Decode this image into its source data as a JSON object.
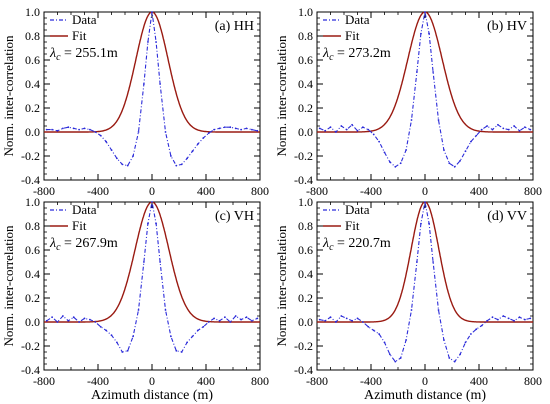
{
  "shared": {
    "ylabel": "Norm. inter-correlation",
    "xlabel": "Azimuth distance (m)",
    "legend_data": "Data",
    "legend_fit": "Fit",
    "data_color": "#2b2bd9",
    "fit_color": "#9a1b12"
  },
  "chart_data": [
    {
      "type": "line",
      "title": "(a) HH",
      "annotation": "= 255.1m",
      "lambda_c": 255.1,
      "xlim": [
        -800,
        800
      ],
      "ylim": [
        -0.4,
        1.0
      ],
      "xticks": [
        "-800",
        "-400",
        "0",
        "400",
        "800"
      ],
      "yticks": [
        "-0.4",
        "-0.2",
        "0.0",
        "0.2",
        "0.4",
        "0.6",
        "0.8",
        "1.0"
      ],
      "legend": "top-left",
      "series": [
        {
          "name": "Data",
          "style": "dash-dot",
          "x": [
            -780,
            -740,
            -700,
            -660,
            -620,
            -580,
            -540,
            -500,
            -460,
            -420,
            -380,
            -340,
            -300,
            -260,
            -220,
            -180,
            -140,
            -100,
            -60,
            -30,
            0,
            30,
            60,
            100,
            140,
            180,
            220,
            260,
            300,
            340,
            380,
            420,
            460,
            500,
            540,
            580,
            620,
            660,
            700,
            740,
            780
          ],
          "y": [
            0.02,
            0.02,
            0.01,
            0.03,
            0.04,
            0.03,
            0.02,
            0.03,
            0.02,
            0.0,
            -0.03,
            -0.08,
            -0.15,
            -0.22,
            -0.27,
            -0.28,
            -0.2,
            0.0,
            0.4,
            0.75,
            1.0,
            0.75,
            0.4,
            0.0,
            -0.2,
            -0.28,
            -0.27,
            -0.22,
            -0.16,
            -0.1,
            -0.05,
            -0.01,
            0.02,
            0.03,
            0.04,
            0.04,
            0.03,
            0.02,
            0.03,
            0.02,
            0.01
          ]
        },
        {
          "name": "Fit",
          "style": "solid",
          "model": "gaussian",
          "lambda_c": 255.1
        }
      ]
    },
    {
      "type": "line",
      "title": "(b) HV",
      "annotation": "= 273.2m",
      "lambda_c": 273.2,
      "xlim": [
        -800,
        800
      ],
      "ylim": [
        -0.4,
        1.0
      ],
      "xticks": [
        "-800",
        "-400",
        "0",
        "400",
        "800"
      ],
      "yticks": [
        "-0.4",
        "-0.2",
        "0.0",
        "0.2",
        "0.4",
        "0.6",
        "0.8",
        "1.0"
      ],
      "legend": "top-left",
      "series": [
        {
          "name": "Data",
          "style": "dash-dot",
          "x": [
            -780,
            -740,
            -700,
            -660,
            -620,
            -580,
            -540,
            -500,
            -460,
            -420,
            -380,
            -340,
            -300,
            -260,
            -220,
            -180,
            -140,
            -100,
            -60,
            -30,
            0,
            30,
            60,
            100,
            140,
            180,
            220,
            260,
            300,
            340,
            380,
            420,
            460,
            500,
            540,
            580,
            620,
            660,
            700,
            740,
            780
          ],
          "y": [
            0.03,
            0.01,
            0.04,
            0.0,
            0.05,
            0.02,
            0.06,
            0.01,
            0.04,
            0.02,
            -0.02,
            -0.08,
            -0.17,
            -0.25,
            -0.29,
            -0.26,
            -0.15,
            0.1,
            0.5,
            0.82,
            1.0,
            0.82,
            0.5,
            0.1,
            -0.15,
            -0.26,
            -0.29,
            -0.24,
            -0.16,
            -0.08,
            -0.03,
            0.02,
            0.05,
            0.02,
            0.06,
            0.03,
            0.02,
            0.05,
            0.01,
            0.04,
            0.02
          ]
        },
        {
          "name": "Fit",
          "style": "solid",
          "model": "gaussian",
          "lambda_c": 273.2
        }
      ]
    },
    {
      "type": "line",
      "title": "(c) VH",
      "annotation": "= 267.9m",
      "lambda_c": 267.9,
      "xlim": [
        -800,
        800
      ],
      "ylim": [
        -0.4,
        1.0
      ],
      "xticks": [
        "-800",
        "-400",
        "0",
        "400",
        "800"
      ],
      "yticks": [
        "-0.4",
        "-0.2",
        "0.0",
        "0.2",
        "0.4",
        "0.6",
        "0.8",
        "1.0"
      ],
      "legend": "top-left",
      "series": [
        {
          "name": "Data",
          "style": "dash-dot",
          "x": [
            -780,
            -740,
            -700,
            -660,
            -620,
            -580,
            -540,
            -500,
            -460,
            -420,
            -380,
            -340,
            -300,
            -260,
            -220,
            -180,
            -140,
            -100,
            -60,
            -30,
            0,
            30,
            60,
            100,
            140,
            180,
            220,
            260,
            300,
            340,
            380,
            420,
            460,
            500,
            540,
            580,
            620,
            660,
            700,
            740,
            780
          ],
          "y": [
            0.01,
            0.04,
            0.0,
            0.05,
            0.01,
            0.04,
            0.0,
            0.03,
            0.02,
            0.0,
            -0.04,
            -0.07,
            -0.11,
            -0.17,
            -0.25,
            -0.24,
            -0.12,
            0.1,
            0.5,
            0.82,
            1.0,
            0.82,
            0.5,
            0.1,
            -0.12,
            -0.24,
            -0.25,
            -0.17,
            -0.12,
            -0.07,
            -0.04,
            0.0,
            0.03,
            0.01,
            0.04,
            0.0,
            0.05,
            0.02,
            0.04,
            0.01,
            0.03
          ]
        },
        {
          "name": "Fit",
          "style": "solid",
          "model": "gaussian",
          "lambda_c": 267.9
        }
      ]
    },
    {
      "type": "line",
      "title": "(d) VV",
      "annotation": "= 220.7m",
      "lambda_c": 220.7,
      "xlim": [
        -800,
        800
      ],
      "ylim": [
        -0.4,
        1.0
      ],
      "xticks": [
        "-800",
        "-400",
        "0",
        "400",
        "800"
      ],
      "yticks": [
        "-0.4",
        "-0.2",
        "0.0",
        "0.2",
        "0.4",
        "0.6",
        "0.8",
        "1.0"
      ],
      "legend": "top-left",
      "series": [
        {
          "name": "Data",
          "style": "dash-dot",
          "x": [
            -780,
            -740,
            -700,
            -660,
            -620,
            -580,
            -540,
            -500,
            -460,
            -420,
            -380,
            -340,
            -300,
            -260,
            -220,
            -180,
            -140,
            -100,
            -60,
            -30,
            0,
            30,
            60,
            100,
            140,
            180,
            220,
            260,
            300,
            340,
            380,
            420,
            460,
            500,
            540,
            580,
            620,
            660,
            700,
            740,
            780
          ],
          "y": [
            0.02,
            0.01,
            0.04,
            0.0,
            0.05,
            0.03,
            0.01,
            0.03,
            0.0,
            -0.04,
            -0.07,
            -0.1,
            -0.17,
            -0.27,
            -0.33,
            -0.3,
            -0.15,
            0.1,
            0.5,
            0.82,
            1.0,
            0.82,
            0.5,
            0.1,
            -0.15,
            -0.3,
            -0.33,
            -0.27,
            -0.17,
            -0.1,
            -0.06,
            -0.03,
            0.01,
            0.04,
            0.02,
            0.05,
            0.03,
            0.01,
            0.04,
            0.02,
            0.03
          ]
        },
        {
          "name": "Fit",
          "style": "solid",
          "model": "gaussian",
          "lambda_c": 220.7
        }
      ]
    }
  ]
}
